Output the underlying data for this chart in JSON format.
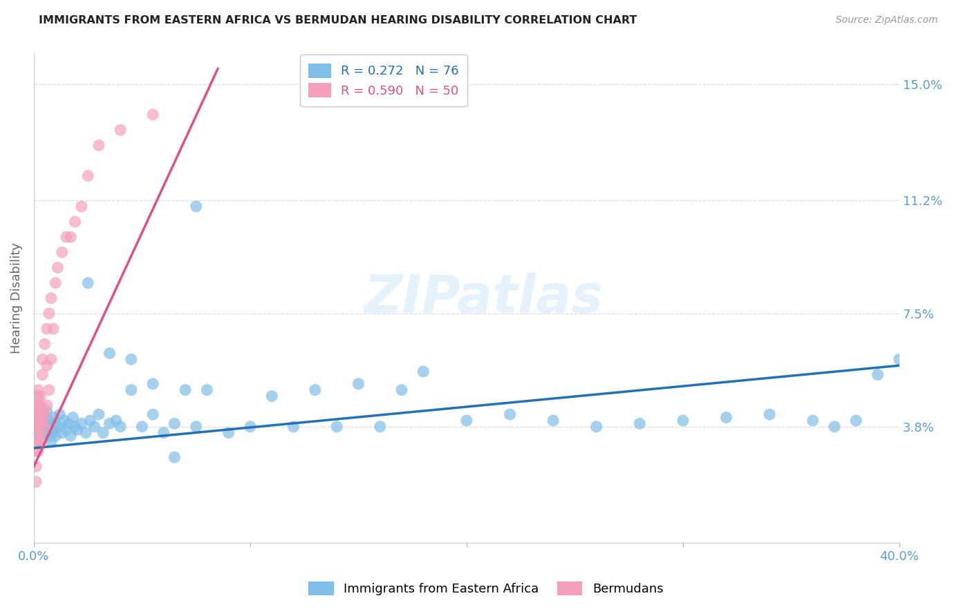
{
  "title": "IMMIGRANTS FROM EASTERN AFRICA VS BERMUDAN HEARING DISABILITY CORRELATION CHART",
  "source": "Source: ZipAtlas.com",
  "ylabel": "Hearing Disability",
  "ytick_vals": [
    0.0,
    0.038,
    0.075,
    0.112,
    0.15
  ],
  "ytick_labels": [
    "",
    "3.8%",
    "7.5%",
    "11.2%",
    "15.0%"
  ],
  "xtick_vals": [
    0.0,
    0.1,
    0.2,
    0.3,
    0.4
  ],
  "xtick_labels": [
    "0.0%",
    "",
    "",
    "",
    "40.0%"
  ],
  "watermark": "ZIPatlas",
  "blue_R": 0.272,
  "blue_N": 76,
  "pink_R": 0.59,
  "pink_N": 50,
  "legend_blue_label": "Immigrants from Eastern Africa",
  "legend_pink_label": "Bermudans",
  "blue_color": "#7fbee8",
  "pink_color": "#f4a0bb",
  "blue_line_color": "#2171b5",
  "pink_line_color": "#e05080",
  "title_color": "#222222",
  "right_label_color": "#5b9bd5",
  "xlim": [
    0.0,
    0.4
  ],
  "ylim": [
    0.0,
    0.16
  ],
  "background_color": "#ffffff",
  "grid_color": "#dddddd",
  "blue_scatter_x": [
    0.001,
    0.001,
    0.002,
    0.002,
    0.003,
    0.003,
    0.004,
    0.004,
    0.005,
    0.005,
    0.006,
    0.006,
    0.007,
    0.007,
    0.008,
    0.008,
    0.009,
    0.009,
    0.01,
    0.01,
    0.011,
    0.012,
    0.013,
    0.014,
    0.015,
    0.016,
    0.017,
    0.018,
    0.019,
    0.02,
    0.022,
    0.024,
    0.026,
    0.028,
    0.03,
    0.032,
    0.035,
    0.038,
    0.04,
    0.045,
    0.05,
    0.055,
    0.06,
    0.065,
    0.07,
    0.075,
    0.08,
    0.09,
    0.1,
    0.11,
    0.12,
    0.13,
    0.14,
    0.15,
    0.16,
    0.17,
    0.18,
    0.2,
    0.22,
    0.24,
    0.26,
    0.28,
    0.3,
    0.32,
    0.34,
    0.36,
    0.37,
    0.38,
    0.39,
    0.4,
    0.025,
    0.035,
    0.045,
    0.055,
    0.065,
    0.075
  ],
  "blue_scatter_y": [
    0.04,
    0.036,
    0.038,
    0.035,
    0.042,
    0.037,
    0.034,
    0.041,
    0.036,
    0.039,
    0.038,
    0.043,
    0.035,
    0.04,
    0.037,
    0.033,
    0.041,
    0.036,
    0.039,
    0.035,
    0.038,
    0.042,
    0.036,
    0.04,
    0.037,
    0.039,
    0.035,
    0.041,
    0.038,
    0.037,
    0.039,
    0.036,
    0.04,
    0.038,
    0.042,
    0.036,
    0.039,
    0.04,
    0.038,
    0.05,
    0.038,
    0.042,
    0.036,
    0.039,
    0.05,
    0.038,
    0.05,
    0.036,
    0.038,
    0.048,
    0.038,
    0.05,
    0.038,
    0.052,
    0.038,
    0.05,
    0.056,
    0.04,
    0.042,
    0.04,
    0.038,
    0.039,
    0.04,
    0.041,
    0.042,
    0.04,
    0.038,
    0.04,
    0.055,
    0.06,
    0.085,
    0.062,
    0.06,
    0.052,
    0.028,
    0.11
  ],
  "pink_scatter_x": [
    0.001,
    0.001,
    0.001,
    0.001,
    0.001,
    0.001,
    0.001,
    0.001,
    0.001,
    0.001,
    0.002,
    0.002,
    0.002,
    0.002,
    0.002,
    0.002,
    0.002,
    0.002,
    0.003,
    0.003,
    0.003,
    0.003,
    0.003,
    0.003,
    0.004,
    0.004,
    0.004,
    0.004,
    0.005,
    0.005,
    0.005,
    0.006,
    0.006,
    0.006,
    0.007,
    0.007,
    0.008,
    0.008,
    0.009,
    0.01,
    0.011,
    0.013,
    0.015,
    0.017,
    0.019,
    0.022,
    0.025,
    0.03,
    0.04,
    0.055
  ],
  "pink_scatter_y": [
    0.03,
    0.033,
    0.035,
    0.037,
    0.039,
    0.041,
    0.043,
    0.045,
    0.02,
    0.025,
    0.03,
    0.033,
    0.036,
    0.039,
    0.042,
    0.045,
    0.048,
    0.05,
    0.033,
    0.036,
    0.039,
    0.042,
    0.045,
    0.048,
    0.04,
    0.044,
    0.055,
    0.06,
    0.038,
    0.042,
    0.065,
    0.045,
    0.058,
    0.07,
    0.05,
    0.075,
    0.06,
    0.08,
    0.07,
    0.085,
    0.09,
    0.095,
    0.1,
    0.1,
    0.105,
    0.11,
    0.12,
    0.13,
    0.135,
    0.14
  ],
  "pink_line_x0": 0.0,
  "pink_line_y0": 0.025,
  "pink_line_x1": 0.085,
  "pink_line_y1": 0.155,
  "blue_line_x0": 0.0,
  "blue_line_y0": 0.031,
  "blue_line_x1": 0.4,
  "blue_line_y1": 0.058
}
